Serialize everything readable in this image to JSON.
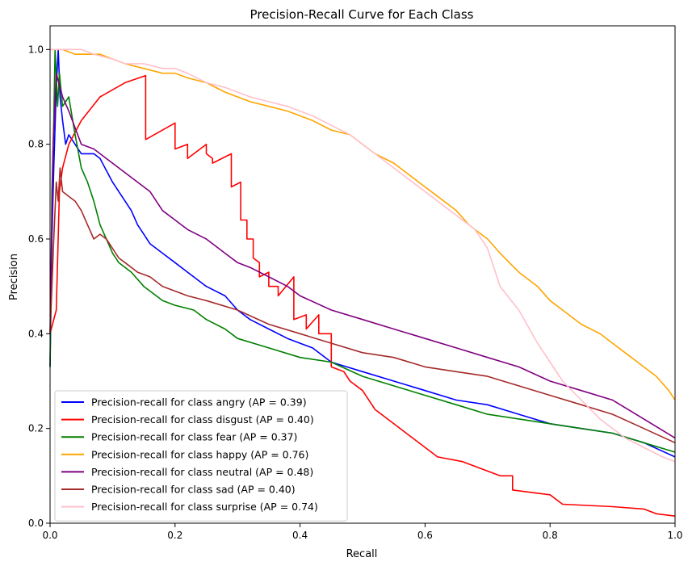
{
  "chart_data": {
    "type": "line",
    "title": "Precision-Recall Curve for Each Class",
    "xlabel": "Recall",
    "ylabel": "Precision",
    "xlim": [
      0,
      1
    ],
    "ylim": [
      0,
      1.05
    ],
    "xticks": [
      "0.0",
      "0.2",
      "0.4",
      "0.6",
      "0.8",
      "1.0"
    ],
    "yticks": [
      "0.0",
      "0.2",
      "0.4",
      "0.6",
      "0.8",
      "1.0"
    ],
    "grid": false,
    "legend_position": "lower-left",
    "series": [
      {
        "name": "Precision-recall for class angry (AP = 0.39)",
        "color": "#0000ff",
        "points": [
          [
            0.0,
            0.33
          ],
          [
            0.003,
            0.6
          ],
          [
            0.006,
            0.75
          ],
          [
            0.01,
            0.92
          ],
          [
            0.013,
            1.0
          ],
          [
            0.016,
            0.9
          ],
          [
            0.02,
            0.85
          ],
          [
            0.025,
            0.8
          ],
          [
            0.03,
            0.82
          ],
          [
            0.04,
            0.8
          ],
          [
            0.05,
            0.78
          ],
          [
            0.07,
            0.78
          ],
          [
            0.08,
            0.77
          ],
          [
            0.1,
            0.72
          ],
          [
            0.12,
            0.68
          ],
          [
            0.13,
            0.66
          ],
          [
            0.14,
            0.63
          ],
          [
            0.15,
            0.61
          ],
          [
            0.16,
            0.59
          ],
          [
            0.18,
            0.57
          ],
          [
            0.2,
            0.55
          ],
          [
            0.22,
            0.53
          ],
          [
            0.25,
            0.5
          ],
          [
            0.28,
            0.48
          ],
          [
            0.3,
            0.45
          ],
          [
            0.32,
            0.43
          ],
          [
            0.35,
            0.41
          ],
          [
            0.38,
            0.39
          ],
          [
            0.4,
            0.38
          ],
          [
            0.42,
            0.37
          ],
          [
            0.45,
            0.34
          ],
          [
            0.5,
            0.32
          ],
          [
            0.55,
            0.3
          ],
          [
            0.6,
            0.28
          ],
          [
            0.65,
            0.26
          ],
          [
            0.7,
            0.25
          ],
          [
            0.75,
            0.23
          ],
          [
            0.8,
            0.21
          ],
          [
            0.85,
            0.2
          ],
          [
            0.9,
            0.19
          ],
          [
            0.95,
            0.17
          ],
          [
            1.0,
            0.14
          ]
        ]
      },
      {
        "name": "Precision-recall for class disgust (AP = 0.40)",
        "color": "#ff0000",
        "points": [
          [
            0.0,
            0.4
          ],
          [
            0.01,
            0.45
          ],
          [
            0.015,
            0.7
          ],
          [
            0.02,
            0.75
          ],
          [
            0.03,
            0.8
          ],
          [
            0.05,
            0.85
          ],
          [
            0.08,
            0.9
          ],
          [
            0.12,
            0.93
          ],
          [
            0.153,
            0.945
          ],
          [
            0.153,
            0.81
          ],
          [
            0.2,
            0.845
          ],
          [
            0.2,
            0.79
          ],
          [
            0.22,
            0.8
          ],
          [
            0.22,
            0.77
          ],
          [
            0.25,
            0.8
          ],
          [
            0.25,
            0.78
          ],
          [
            0.26,
            0.77
          ],
          [
            0.26,
            0.76
          ],
          [
            0.29,
            0.78
          ],
          [
            0.29,
            0.71
          ],
          [
            0.305,
            0.72
          ],
          [
            0.305,
            0.64
          ],
          [
            0.315,
            0.64
          ],
          [
            0.315,
            0.6
          ],
          [
            0.325,
            0.6
          ],
          [
            0.325,
            0.56
          ],
          [
            0.335,
            0.55
          ],
          [
            0.335,
            0.52
          ],
          [
            0.35,
            0.53
          ],
          [
            0.35,
            0.5
          ],
          [
            0.365,
            0.5
          ],
          [
            0.365,
            0.48
          ],
          [
            0.39,
            0.52
          ],
          [
            0.39,
            0.43
          ],
          [
            0.41,
            0.44
          ],
          [
            0.41,
            0.41
          ],
          [
            0.43,
            0.44
          ],
          [
            0.43,
            0.4
          ],
          [
            0.45,
            0.4
          ],
          [
            0.45,
            0.33
          ],
          [
            0.47,
            0.32
          ],
          [
            0.48,
            0.3
          ],
          [
            0.5,
            0.28
          ],
          [
            0.52,
            0.24
          ],
          [
            0.55,
            0.21
          ],
          [
            0.58,
            0.18
          ],
          [
            0.6,
            0.16
          ],
          [
            0.62,
            0.14
          ],
          [
            0.66,
            0.13
          ],
          [
            0.72,
            0.1
          ],
          [
            0.74,
            0.1
          ],
          [
            0.74,
            0.07
          ],
          [
            0.8,
            0.06
          ],
          [
            0.82,
            0.04
          ],
          [
            0.9,
            0.035
          ],
          [
            0.95,
            0.03
          ],
          [
            0.97,
            0.02
          ],
          [
            1.0,
            0.015
          ]
        ]
      },
      {
        "name": "Precision-recall for class fear (AP = 0.37)",
        "color": "#008000",
        "points": [
          [
            0.0,
            0.33
          ],
          [
            0.003,
            0.7
          ],
          [
            0.006,
            0.85
          ],
          [
            0.008,
            1.0
          ],
          [
            0.012,
            0.88
          ],
          [
            0.015,
            0.95
          ],
          [
            0.02,
            0.88
          ],
          [
            0.03,
            0.9
          ],
          [
            0.04,
            0.82
          ],
          [
            0.05,
            0.75
          ],
          [
            0.06,
            0.72
          ],
          [
            0.07,
            0.68
          ],
          [
            0.08,
            0.63
          ],
          [
            0.09,
            0.6
          ],
          [
            0.1,
            0.57
          ],
          [
            0.11,
            0.55
          ],
          [
            0.13,
            0.53
          ],
          [
            0.15,
            0.5
          ],
          [
            0.18,
            0.47
          ],
          [
            0.2,
            0.46
          ],
          [
            0.23,
            0.45
          ],
          [
            0.25,
            0.43
          ],
          [
            0.28,
            0.41
          ],
          [
            0.3,
            0.39
          ],
          [
            0.35,
            0.37
          ],
          [
            0.4,
            0.35
          ],
          [
            0.45,
            0.34
          ],
          [
            0.5,
            0.31
          ],
          [
            0.55,
            0.29
          ],
          [
            0.6,
            0.27
          ],
          [
            0.65,
            0.25
          ],
          [
            0.7,
            0.23
          ],
          [
            0.75,
            0.22
          ],
          [
            0.8,
            0.21
          ],
          [
            0.85,
            0.2
          ],
          [
            0.9,
            0.19
          ],
          [
            0.95,
            0.17
          ],
          [
            1.0,
            0.15
          ]
        ]
      },
      {
        "name": "Precision-recall for class happy (AP = 0.76)",
        "color": "#ffa500",
        "points": [
          [
            0.0,
            1.0
          ],
          [
            0.02,
            1.0
          ],
          [
            0.04,
            0.99
          ],
          [
            0.06,
            0.99
          ],
          [
            0.08,
            0.99
          ],
          [
            0.1,
            0.98
          ],
          [
            0.12,
            0.97
          ],
          [
            0.15,
            0.96
          ],
          [
            0.18,
            0.95
          ],
          [
            0.2,
            0.95
          ],
          [
            0.22,
            0.94
          ],
          [
            0.25,
            0.93
          ],
          [
            0.28,
            0.91
          ],
          [
            0.3,
            0.9
          ],
          [
            0.32,
            0.89
          ],
          [
            0.35,
            0.88
          ],
          [
            0.38,
            0.87
          ],
          [
            0.4,
            0.86
          ],
          [
            0.42,
            0.85
          ],
          [
            0.45,
            0.83
          ],
          [
            0.48,
            0.82
          ],
          [
            0.5,
            0.8
          ],
          [
            0.52,
            0.78
          ],
          [
            0.55,
            0.76
          ],
          [
            0.58,
            0.73
          ],
          [
            0.6,
            0.71
          ],
          [
            0.62,
            0.69
          ],
          [
            0.65,
            0.66
          ],
          [
            0.67,
            0.63
          ],
          [
            0.7,
            0.6
          ],
          [
            0.72,
            0.57
          ],
          [
            0.75,
            0.53
          ],
          [
            0.78,
            0.5
          ],
          [
            0.8,
            0.47
          ],
          [
            0.82,
            0.45
          ],
          [
            0.85,
            0.42
          ],
          [
            0.88,
            0.4
          ],
          [
            0.9,
            0.38
          ],
          [
            0.92,
            0.36
          ],
          [
            0.95,
            0.33
          ],
          [
            0.97,
            0.31
          ],
          [
            0.99,
            0.28
          ],
          [
            1.0,
            0.26
          ]
        ]
      },
      {
        "name": "Precision-recall for class neutral (AP = 0.48)",
        "color": "#800080",
        "points": [
          [
            0.0,
            0.4
          ],
          [
            0.005,
            0.8
          ],
          [
            0.01,
            0.95
          ],
          [
            0.02,
            0.9
          ],
          [
            0.03,
            0.87
          ],
          [
            0.05,
            0.8
          ],
          [
            0.07,
            0.79
          ],
          [
            0.08,
            0.78
          ],
          [
            0.1,
            0.76
          ],
          [
            0.12,
            0.74
          ],
          [
            0.14,
            0.72
          ],
          [
            0.16,
            0.7
          ],
          [
            0.18,
            0.66
          ],
          [
            0.2,
            0.64
          ],
          [
            0.22,
            0.62
          ],
          [
            0.25,
            0.6
          ],
          [
            0.28,
            0.57
          ],
          [
            0.3,
            0.55
          ],
          [
            0.32,
            0.54
          ],
          [
            0.35,
            0.52
          ],
          [
            0.38,
            0.5
          ],
          [
            0.4,
            0.48
          ],
          [
            0.45,
            0.45
          ],
          [
            0.5,
            0.43
          ],
          [
            0.55,
            0.41
          ],
          [
            0.6,
            0.39
          ],
          [
            0.65,
            0.37
          ],
          [
            0.7,
            0.35
          ],
          [
            0.75,
            0.33
          ],
          [
            0.8,
            0.3
          ],
          [
            0.85,
            0.28
          ],
          [
            0.9,
            0.26
          ],
          [
            0.95,
            0.22
          ],
          [
            1.0,
            0.18
          ]
        ]
      },
      {
        "name": "Precision-recall for class sad (AP = 0.40)",
        "color": "#a52a2a",
        "points": [
          [
            0.0,
            0.4
          ],
          [
            0.003,
            0.5
          ],
          [
            0.006,
            0.6
          ],
          [
            0.01,
            0.72
          ],
          [
            0.013,
            0.68
          ],
          [
            0.016,
            0.75
          ],
          [
            0.02,
            0.7
          ],
          [
            0.03,
            0.69
          ],
          [
            0.04,
            0.68
          ],
          [
            0.05,
            0.66
          ],
          [
            0.06,
            0.63
          ],
          [
            0.07,
            0.6
          ],
          [
            0.08,
            0.61
          ],
          [
            0.09,
            0.6
          ],
          [
            0.1,
            0.58
          ],
          [
            0.11,
            0.56
          ],
          [
            0.12,
            0.55
          ],
          [
            0.14,
            0.53
          ],
          [
            0.16,
            0.52
          ],
          [
            0.18,
            0.5
          ],
          [
            0.2,
            0.49
          ],
          [
            0.22,
            0.48
          ],
          [
            0.25,
            0.47
          ],
          [
            0.3,
            0.45
          ],
          [
            0.35,
            0.42
          ],
          [
            0.4,
            0.4
          ],
          [
            0.45,
            0.38
          ],
          [
            0.5,
            0.36
          ],
          [
            0.55,
            0.35
          ],
          [
            0.6,
            0.33
          ],
          [
            0.65,
            0.32
          ],
          [
            0.7,
            0.31
          ],
          [
            0.75,
            0.29
          ],
          [
            0.8,
            0.27
          ],
          [
            0.85,
            0.25
          ],
          [
            0.9,
            0.23
          ],
          [
            0.95,
            0.2
          ],
          [
            1.0,
            0.17
          ]
        ]
      },
      {
        "name": "Precision-recall for class surprise (AP = 0.74)",
        "color": "#ffc0cb",
        "points": [
          [
            0.0,
            1.0
          ],
          [
            0.03,
            1.0
          ],
          [
            0.05,
            1.0
          ],
          [
            0.07,
            0.99
          ],
          [
            0.1,
            0.98
          ],
          [
            0.12,
            0.97
          ],
          [
            0.15,
            0.97
          ],
          [
            0.18,
            0.96
          ],
          [
            0.2,
            0.96
          ],
          [
            0.22,
            0.95
          ],
          [
            0.25,
            0.93
          ],
          [
            0.28,
            0.92
          ],
          [
            0.3,
            0.91
          ],
          [
            0.32,
            0.9
          ],
          [
            0.35,
            0.89
          ],
          [
            0.38,
            0.88
          ],
          [
            0.4,
            0.87
          ],
          [
            0.42,
            0.86
          ],
          [
            0.45,
            0.84
          ],
          [
            0.48,
            0.82
          ],
          [
            0.5,
            0.8
          ],
          [
            0.52,
            0.78
          ],
          [
            0.55,
            0.75
          ],
          [
            0.58,
            0.72
          ],
          [
            0.6,
            0.7
          ],
          [
            0.62,
            0.68
          ],
          [
            0.65,
            0.65
          ],
          [
            0.68,
            0.62
          ],
          [
            0.7,
            0.58
          ],
          [
            0.72,
            0.5
          ],
          [
            0.75,
            0.45
          ],
          [
            0.78,
            0.38
          ],
          [
            0.8,
            0.34
          ],
          [
            0.82,
            0.3
          ],
          [
            0.85,
            0.26
          ],
          [
            0.88,
            0.22
          ],
          [
            0.9,
            0.2
          ],
          [
            0.92,
            0.18
          ],
          [
            0.95,
            0.16
          ],
          [
            0.98,
            0.14
          ],
          [
            1.0,
            0.13
          ]
        ]
      }
    ]
  }
}
